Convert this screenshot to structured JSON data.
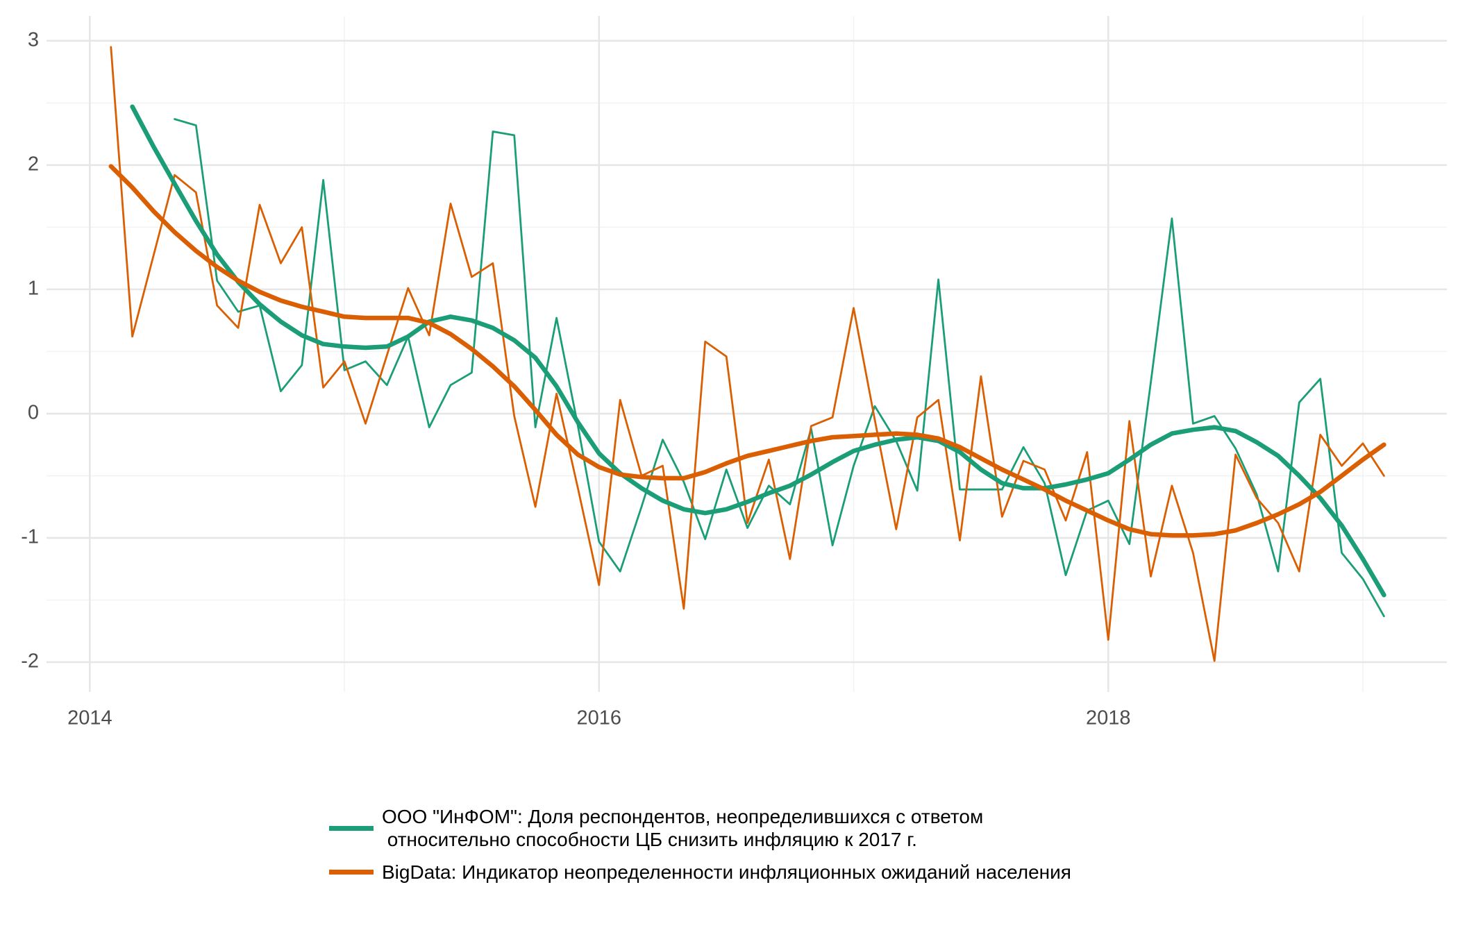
{
  "chart_data": {
    "type": "line",
    "x": [
      2014.083,
      2014.167,
      2014.25,
      2014.333,
      2014.417,
      2014.5,
      2014.583,
      2014.667,
      2014.75,
      2014.833,
      2014.917,
      2015,
      2015.083,
      2015.167,
      2015.25,
      2015.333,
      2015.417,
      2015.5,
      2015.583,
      2015.667,
      2015.75,
      2015.833,
      2015.917,
      2016,
      2016.083,
      2016.167,
      2016.25,
      2016.333,
      2016.417,
      2016.5,
      2016.583,
      2016.667,
      2016.75,
      2016.833,
      2016.917,
      2017,
      2017.083,
      2017.167,
      2017.25,
      2017.333,
      2017.417,
      2017.5,
      2017.583,
      2017.667,
      2017.75,
      2017.833,
      2017.917,
      2018,
      2018.083,
      2018.167,
      2018.25,
      2018.333,
      2018.417,
      2018.5,
      2018.583,
      2018.667,
      2018.75,
      2018.833,
      2018.917,
      2019,
      2019.083
    ],
    "series": [
      {
        "name": "ООО \"ИнФОМ\": Доля респондентов, неопределившихся с ответом\n относительно способности ЦБ снизить инфляцию к 2017 г.",
        "color": "#1b9e77",
        "values": [
          null,
          null,
          null,
          2.37,
          2.32,
          1.07,
          0.82,
          0.87,
          0.18,
          0.39,
          1.88,
          0.35,
          0.42,
          0.23,
          0.62,
          -0.11,
          0.23,
          0.33,
          2.27,
          2.24,
          -0.11,
          0.77,
          -0.1,
          -1.03,
          -1.27,
          -0.75,
          -0.21,
          -0.55,
          -1.01,
          -0.45,
          -0.92,
          -0.58,
          -0.73,
          -0.12,
          -1.06,
          -0.42,
          0.06,
          -0.22,
          -0.62,
          1.08,
          -0.61,
          -0.61,
          -0.61,
          -0.27,
          -0.56,
          -1.3,
          -0.78,
          -0.7,
          -1.05,
          0.25,
          1.57,
          -0.08,
          -0.02,
          -0.28,
          -0.65,
          -1.27,
          0.09,
          0.28,
          -1.12,
          -1.33,
          -1.63
        ],
        "trend": [
          null,
          2.47,
          2.15,
          1.85,
          1.55,
          1.28,
          1.06,
          0.88,
          0.74,
          0.63,
          0.56,
          0.54,
          0.53,
          0.54,
          0.62,
          0.74,
          0.78,
          0.75,
          0.69,
          0.59,
          0.45,
          0.22,
          -0.07,
          -0.32,
          -0.48,
          -0.6,
          -0.7,
          -0.77,
          -0.8,
          -0.77,
          -0.71,
          -0.64,
          -0.58,
          -0.49,
          -0.39,
          -0.3,
          -0.25,
          -0.21,
          -0.19,
          -0.22,
          -0.31,
          -0.45,
          -0.56,
          -0.6,
          -0.6,
          -0.57,
          -0.53,
          -0.48,
          -0.37,
          -0.25,
          -0.16,
          -0.13,
          -0.11,
          -0.14,
          -0.23,
          -0.34,
          -0.5,
          -0.68,
          -0.9,
          -1.17,
          -1.46
        ]
      },
      {
        "name": "BigData: Индикатор неопределенности инфляционных ожиданий населения",
        "color": "#d95f02",
        "values": [
          2.95,
          0.62,
          1.27,
          1.92,
          1.78,
          0.87,
          0.69,
          1.68,
          1.21,
          1.5,
          0.21,
          0.42,
          -0.08,
          0.47,
          1.01,
          0.63,
          1.69,
          1.1,
          1.21,
          -0.02,
          -0.75,
          0.16,
          -0.6,
          -1.38,
          0.11,
          -0.5,
          -0.42,
          -1.57,
          0.58,
          0.46,
          -0.88,
          -0.37,
          -1.17,
          -0.1,
          -0.03,
          0.85,
          -0.05,
          -0.93,
          -0.03,
          0.11,
          -1.02,
          0.3,
          -0.83,
          -0.38,
          -0.45,
          -0.86,
          -0.31,
          -1.82,
          -0.06,
          -1.31,
          -0.58,
          -1.12,
          -1.99,
          -0.33,
          -0.68,
          -0.88,
          -1.27,
          -0.17,
          -0.42,
          -0.24,
          -0.5
        ],
        "trend": [
          1.99,
          1.82,
          1.63,
          1.46,
          1.31,
          1.18,
          1.07,
          0.98,
          0.91,
          0.86,
          0.82,
          0.78,
          0.77,
          0.77,
          0.77,
          0.73,
          0.64,
          0.52,
          0.38,
          0.22,
          0.03,
          -0.17,
          -0.33,
          -0.43,
          -0.49,
          -0.51,
          -0.52,
          -0.52,
          -0.47,
          -0.4,
          -0.34,
          -0.3,
          -0.26,
          -0.22,
          -0.19,
          -0.18,
          -0.17,
          -0.16,
          -0.17,
          -0.2,
          -0.27,
          -0.36,
          -0.45,
          -0.53,
          -0.61,
          -0.7,
          -0.78,
          -0.86,
          -0.93,
          -0.97,
          -0.98,
          -0.98,
          -0.97,
          -0.94,
          -0.88,
          -0.81,
          -0.73,
          -0.63,
          -0.5,
          -0.37,
          -0.25
        ]
      }
    ],
    "xlim": [
      2013.83,
      2019.33
    ],
    "xticks": [
      2014,
      2016,
      2018
    ],
    "xminor": [
      2015,
      2017,
      2019
    ],
    "ylim": [
      -2.24,
      3.2
    ],
    "yticks": [
      -2,
      -1,
      0,
      1,
      2,
      3
    ],
    "yminor": [
      -1.5,
      -0.5,
      0.5,
      1.5,
      2.5
    ],
    "grid": true,
    "legend": "bottom"
  }
}
